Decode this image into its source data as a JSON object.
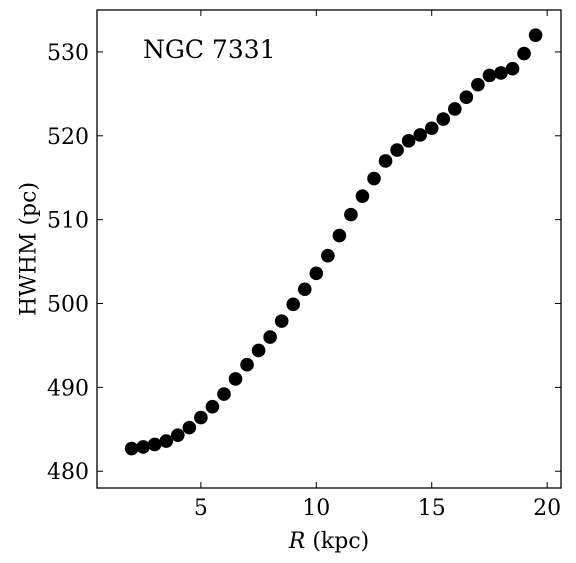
{
  "chart_data": {
    "type": "scatter",
    "annotation": "NGC 7331",
    "xlabel": "R (kpc)",
    "xlabel_italic": "R",
    "xlabel_rest": " (kpc)",
    "ylabel": "HWHM (pc)",
    "xlim": [
      0.5,
      20.6
    ],
    "ylim": [
      478,
      535
    ],
    "xticks": [
      5,
      10,
      15,
      20
    ],
    "yticks": [
      480,
      490,
      500,
      510,
      520,
      530
    ],
    "marker_color": "#000000",
    "grid": false,
    "series": [
      {
        "x": [
          2.0,
          2.5,
          3.0,
          3.5,
          4.0,
          4.5,
          5.0,
          5.5,
          6.0,
          6.5,
          7.0,
          7.5,
          8.0,
          8.5,
          9.0,
          9.5,
          10.0,
          10.5,
          11.0,
          11.5,
          12.0,
          12.5,
          13.0,
          13.5,
          14.0,
          14.5,
          15.0,
          15.5,
          16.0,
          16.5,
          17.0,
          17.5,
          18.0,
          18.5,
          19.0,
          19.5
        ],
        "y": [
          482.7,
          482.9,
          483.2,
          483.6,
          484.3,
          485.2,
          486.4,
          487.7,
          489.2,
          491.0,
          492.7,
          494.4,
          496.0,
          497.9,
          499.9,
          501.7,
          503.6,
          505.7,
          508.1,
          510.6,
          512.8,
          514.9,
          517.0,
          518.3,
          519.4,
          520.1,
          520.9,
          522.0,
          523.2,
          524.6,
          526.1,
          527.2,
          527.5,
          528.0,
          529.8,
          532.0
        ]
      }
    ]
  }
}
